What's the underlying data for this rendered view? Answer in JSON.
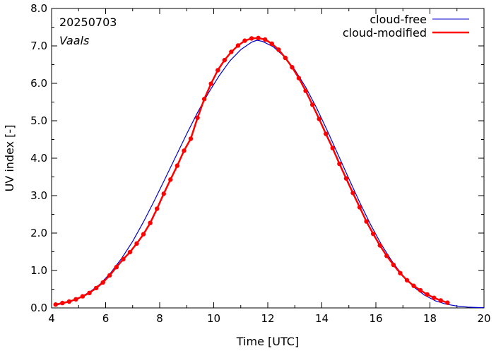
{
  "chart_data": {
    "type": "line",
    "date_label": "20250703",
    "location_label": "Vaals",
    "xlabel": "Time  [UTC]",
    "ylabel": "UV index  [-]",
    "xlim": [
      4,
      20
    ],
    "ylim": [
      0.0,
      8.0
    ],
    "x_ticks": [
      "4",
      "6",
      "8",
      "10",
      "12",
      "14",
      "16",
      "18",
      "20"
    ],
    "y_ticks": [
      "0.0",
      "1.0",
      "2.0",
      "3.0",
      "4.0",
      "5.0",
      "6.0",
      "7.0",
      "8.0"
    ],
    "grid": false,
    "legend_position": "top-right",
    "series": [
      {
        "name": "cloud-free",
        "color": "#0000cc",
        "markers": false,
        "x": [
          4.2,
          4.6,
          5.0,
          5.4,
          5.8,
          6.2,
          6.6,
          7.0,
          7.4,
          7.8,
          8.2,
          8.6,
          9.0,
          9.4,
          9.8,
          10.2,
          10.6,
          11.0,
          11.4,
          11.6,
          11.8,
          12.2,
          12.6,
          13.0,
          13.4,
          13.8,
          14.2,
          14.6,
          15.0,
          15.4,
          15.8,
          16.2,
          16.6,
          17.0,
          17.4,
          17.8,
          18.2,
          18.6,
          19.0,
          19.4,
          19.8,
          20.0
        ],
        "y": [
          0.08,
          0.15,
          0.26,
          0.42,
          0.64,
          0.95,
          1.33,
          1.78,
          2.3,
          2.86,
          3.45,
          4.05,
          4.65,
          5.22,
          5.74,
          6.2,
          6.6,
          6.9,
          7.1,
          7.15,
          7.12,
          6.98,
          6.72,
          6.36,
          5.9,
          5.35,
          4.74,
          4.1,
          3.45,
          2.82,
          2.23,
          1.7,
          1.24,
          0.86,
          0.56,
          0.34,
          0.19,
          0.1,
          0.05,
          0.02,
          0.01,
          0.01
        ]
      },
      {
        "name": "cloud-modified",
        "color": "#ff0000",
        "markers": true,
        "x": [
          4.15,
          4.4,
          4.65,
          4.9,
          5.15,
          5.4,
          5.65,
          5.9,
          6.15,
          6.4,
          6.65,
          6.9,
          7.15,
          7.4,
          7.65,
          7.9,
          8.15,
          8.4,
          8.65,
          8.9,
          9.15,
          9.4,
          9.65,
          9.9,
          10.15,
          10.4,
          10.65,
          10.9,
          11.15,
          11.4,
          11.65,
          11.9,
          12.15,
          12.4,
          12.65,
          12.9,
          13.15,
          13.4,
          13.65,
          13.9,
          14.15,
          14.4,
          14.65,
          14.9,
          15.15,
          15.4,
          15.65,
          15.9,
          16.15,
          16.4,
          16.65,
          16.9,
          17.15,
          17.4,
          17.65,
          17.9,
          18.15,
          18.4,
          18.65
        ],
        "y": [
          0.09,
          0.13,
          0.17,
          0.23,
          0.31,
          0.4,
          0.53,
          0.68,
          0.87,
          1.09,
          1.3,
          1.49,
          1.72,
          1.97,
          2.27,
          2.65,
          3.05,
          3.43,
          3.8,
          4.2,
          4.52,
          5.08,
          5.58,
          5.99,
          6.35,
          6.62,
          6.84,
          7.01,
          7.14,
          7.2,
          7.21,
          7.17,
          7.06,
          6.9,
          6.68,
          6.43,
          6.14,
          5.8,
          5.43,
          5.05,
          4.65,
          4.27,
          3.85,
          3.46,
          3.07,
          2.69,
          2.31,
          1.98,
          1.67,
          1.39,
          1.15,
          0.93,
          0.74,
          0.59,
          0.47,
          0.36,
          0.27,
          0.2,
          0.14
        ]
      }
    ]
  }
}
